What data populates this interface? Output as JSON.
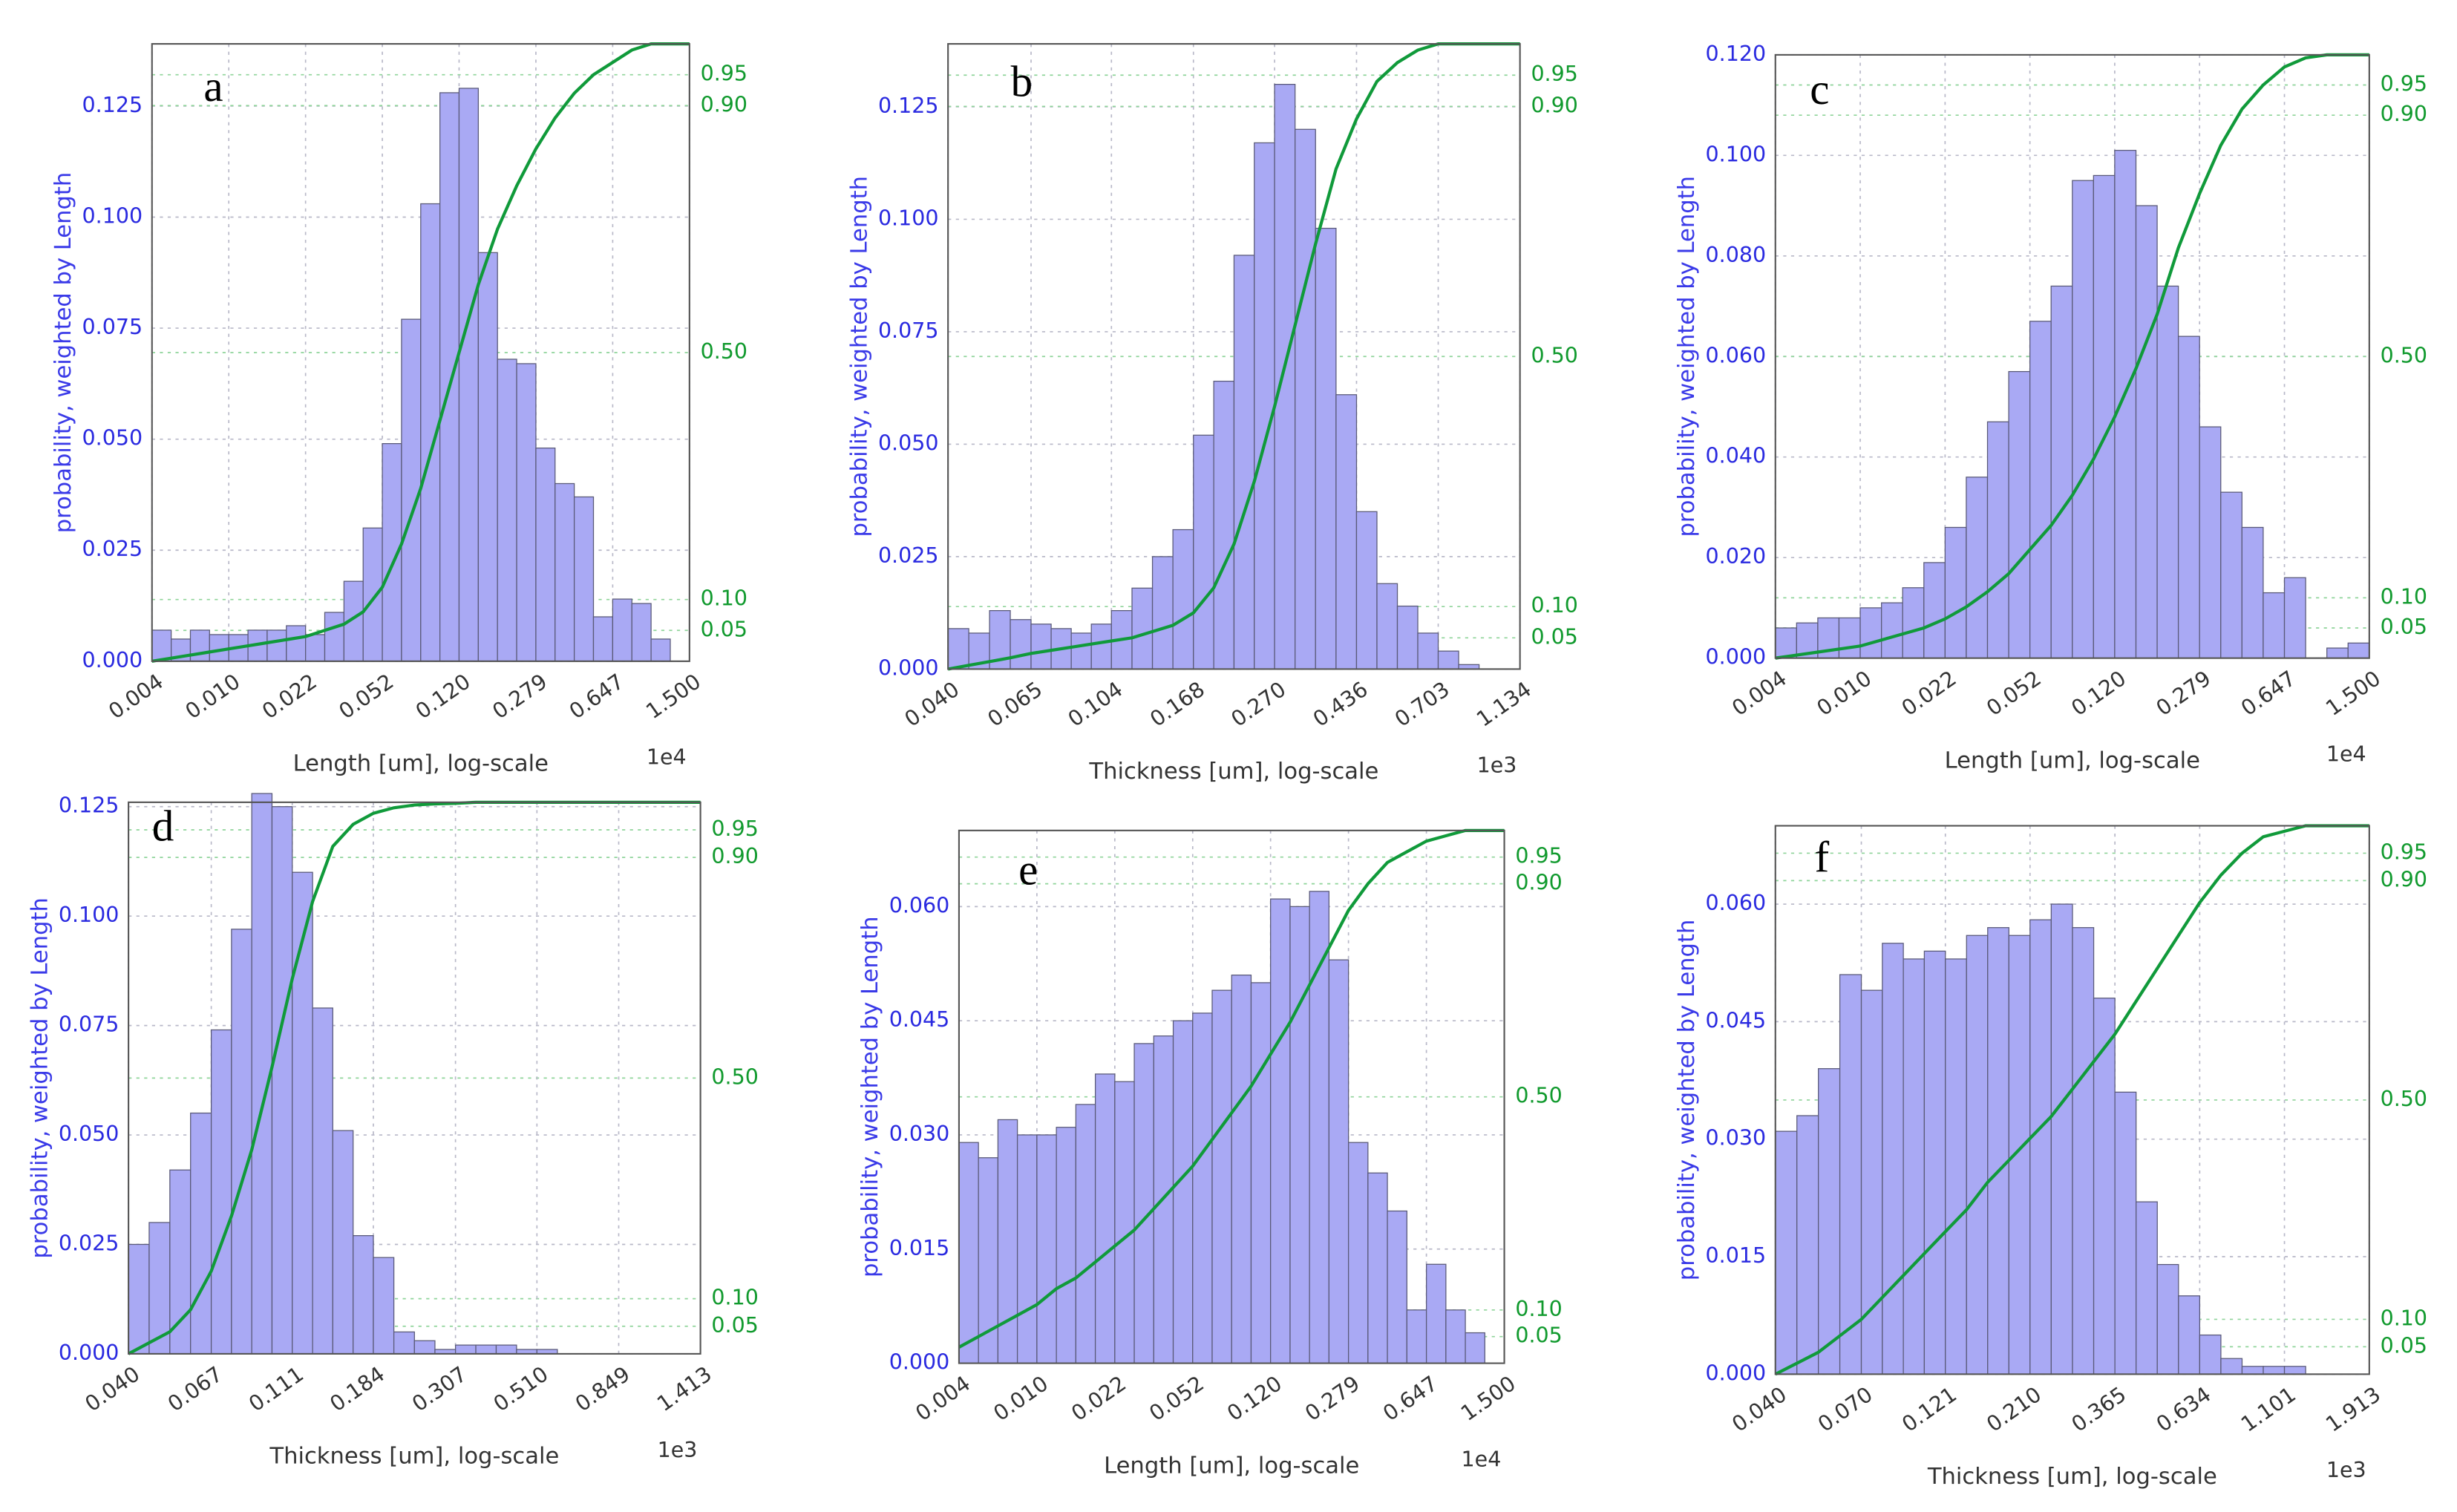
{
  "chart_data": [
    {
      "type": "histogram",
      "panel_label": "a",
      "ylabel": "probability, weighted by Length",
      "xlabel": "Length [um], log-scale",
      "x_multiplier": "1e4",
      "xscale": "log",
      "grid": true,
      "color": "#a9a9f4",
      "bins": [
        0.004157,
        0.00513,
        0.00633,
        0.00781,
        0.00964,
        0.0119,
        0.01468,
        0.01812,
        0.02236,
        0.02759,
        0.03405,
        0.04202,
        0.05185,
        0.06398,
        0.07896,
        0.09743,
        0.1202,
        0.1484,
        0.1831,
        0.2259,
        0.2788,
        0.344,
        0.4245,
        0.5239,
        0.6468,
        0.7982,
        0.985,
        1.2155,
        1.5
      ],
      "values": [
        0.007,
        0.005,
        0.007,
        0.006,
        0.006,
        0.007,
        0.007,
        0.008,
        0.006,
        0.011,
        0.018,
        0.03,
        0.049,
        0.077,
        0.103,
        0.128,
        0.129,
        0.092,
        0.068,
        0.067,
        0.048,
        0.04,
        0.037,
        0.01,
        0.014,
        0.013,
        0.005,
        0
      ],
      "cumulative": {
        "color": "#109a3a",
        "axis": "y2",
        "values": [
          0,
          0.005,
          0.01,
          0.015,
          0.02,
          0.025,
          0.03,
          0.035,
          0.04,
          0.05,
          0.06,
          0.08,
          0.12,
          0.19,
          0.28,
          0.39,
          0.5,
          0.61,
          0.7,
          0.77,
          0.83,
          0.88,
          0.92,
          0.95,
          0.97,
          0.99,
          1,
          1,
          1
        ]
      },
      "xlim": [
        0.004157,
        1.5
      ],
      "ylim": [
        0,
        0.139
      ],
      "y2lim": [
        0,
        1
      ],
      "xticks": [
        {
          "value": 0.004157,
          "label": "0.004"
        },
        {
          "value": 0.00964,
          "label": "0.010"
        },
        {
          "value": 0.02236,
          "label": "0.022"
        },
        {
          "value": 0.05185,
          "label": "0.052"
        },
        {
          "value": 0.1202,
          "label": "0.120"
        },
        {
          "value": 0.2788,
          "label": "0.279"
        },
        {
          "value": 0.6468,
          "label": "0.647"
        },
        {
          "value": 1.5,
          "label": "1.500"
        }
      ],
      "yticks": [
        {
          "value": 0,
          "label": "0.000"
        },
        0.025,
        {
          "value": 0.05,
          "label": "0.050"
        },
        0.075,
        {
          "value": 0.1,
          "label": "0.100"
        },
        0.125
      ],
      "y2ticks": [
        0.05,
        {
          "value": 0.1,
          "label": "0.10"
        },
        {
          "value": 0.5,
          "label": "0.50"
        },
        {
          "value": 0.9,
          "label": "0.90"
        },
        0.95
      ]
    },
    {
      "type": "histogram",
      "panel_label": "b",
      "ylabel": "probability, weighted by Length",
      "xlabel": "Thickness [um], log-scale",
      "x_multiplier": "1e3",
      "xscale": "log",
      "grid": true,
      "color": "#a9a9f4",
      "bins": [
        0.04,
        0.04516,
        0.05099,
        0.05757,
        0.065,
        0.07311,
        0.08222,
        0.09247,
        0.104,
        0.1173,
        0.1322,
        0.149,
        0.168,
        0.1892,
        0.213,
        0.2398,
        0.27,
        0.3044,
        0.3431,
        0.3868,
        0.436,
        0.4913,
        0.5537,
        0.6239,
        0.703,
        0.7923,
        0.8929,
        1.0063,
        1.134
      ],
      "values": [
        0.009,
        0.008,
        0.013,
        0.011,
        0.01,
        0.009,
        0.008,
        0.01,
        0.013,
        0.018,
        0.025,
        0.031,
        0.052,
        0.064,
        0.092,
        0.117,
        0.13,
        0.12,
        0.098,
        0.061,
        0.035,
        0.019,
        0.014,
        0.008,
        0.004,
        0.001,
        0,
        0
      ],
      "cumulative": {
        "color": "#109a3a",
        "axis": "y2",
        "values": [
          0,
          0.006,
          0.012,
          0.018,
          0.025,
          0.03,
          0.035,
          0.04,
          0.045,
          0.05,
          0.06,
          0.07,
          0.09,
          0.13,
          0.2,
          0.3,
          0.42,
          0.55,
          0.68,
          0.8,
          0.88,
          0.94,
          0.97,
          0.99,
          1,
          1,
          1,
          1,
          1
        ]
      },
      "xlim": [
        0.04,
        1.134
      ],
      "ylim": [
        0,
        0.139
      ],
      "y2lim": [
        0,
        1
      ],
      "xticks": [
        {
          "value": 0.04,
          "label": "0.040"
        },
        0.065,
        0.104,
        0.168,
        {
          "value": 0.27,
          "label": "0.270"
        },
        0.436,
        0.703,
        1.134
      ],
      "yticks": [
        {
          "value": 0,
          "label": "0.000"
        },
        0.025,
        {
          "value": 0.05,
          "label": "0.050"
        },
        0.075,
        {
          "value": 0.1,
          "label": "0.100"
        },
        0.125
      ],
      "y2ticks": [
        0.05,
        {
          "value": 0.1,
          "label": "0.10"
        },
        {
          "value": 0.5,
          "label": "0.50"
        },
        {
          "value": 0.9,
          "label": "0.90"
        },
        0.95
      ]
    },
    {
      "type": "histogram",
      "panel_label": "c",
      "ylabel": "probability, weighted by Length",
      "xlabel": "Length [um], log-scale",
      "x_multiplier": "1e4",
      "xscale": "log",
      "grid": true,
      "color": "#a9a9f4",
      "bins": [
        0.004157,
        0.00513,
        0.00633,
        0.00781,
        0.00964,
        0.0119,
        0.01468,
        0.01812,
        0.02236,
        0.02759,
        0.03405,
        0.04202,
        0.05185,
        0.06398,
        0.07896,
        0.09743,
        0.1202,
        0.1484,
        0.1831,
        0.2259,
        0.2788,
        0.344,
        0.4245,
        0.5239,
        0.6468,
        0.7982,
        0.985,
        1.2155,
        1.5
      ],
      "values": [
        0.006,
        0.007,
        0.008,
        0.008,
        0.01,
        0.011,
        0.014,
        0.019,
        0.026,
        0.036,
        0.047,
        0.057,
        0.067,
        0.074,
        0.095,
        0.096,
        0.101,
        0.09,
        0.074,
        0.064,
        0.046,
        0.033,
        0.026,
        0.013,
        0.016,
        0,
        0.002,
        0.003
      ],
      "cumulative": {
        "color": "#109a3a",
        "axis": "y2",
        "values": [
          0,
          0.005,
          0.01,
          0.015,
          0.02,
          0.03,
          0.04,
          0.05,
          0.065,
          0.085,
          0.11,
          0.14,
          0.18,
          0.22,
          0.27,
          0.33,
          0.4,
          0.48,
          0.57,
          0.68,
          0.77,
          0.85,
          0.91,
          0.95,
          0.98,
          0.995,
          1,
          1,
          1
        ]
      },
      "xlim": [
        0.004157,
        1.5
      ],
      "ylim": [
        0,
        0.12
      ],
      "y2lim": [
        0,
        1
      ],
      "xticks": [
        {
          "value": 0.004157,
          "label": "0.004"
        },
        {
          "value": 0.00964,
          "label": "0.010"
        },
        {
          "value": 0.02236,
          "label": "0.022"
        },
        {
          "value": 0.05185,
          "label": "0.052"
        },
        {
          "value": 0.1202,
          "label": "0.120"
        },
        {
          "value": 0.2788,
          "label": "0.279"
        },
        {
          "value": 0.6468,
          "label": "0.647"
        },
        {
          "value": 1.5,
          "label": "1.500"
        }
      ],
      "yticks": [
        {
          "value": 0,
          "label": "0.000"
        },
        {
          "value": 0.02,
          "label": "0.020"
        },
        {
          "value": 0.04,
          "label": "0.040"
        },
        {
          "value": 0.06,
          "label": "0.060"
        },
        {
          "value": 0.08,
          "label": "0.080"
        },
        {
          "value": 0.1,
          "label": "0.100"
        },
        {
          "value": 0.12,
          "label": "0.120"
        }
      ],
      "y2ticks": [
        0.05,
        {
          "value": 0.1,
          "label": "0.10"
        },
        {
          "value": 0.5,
          "label": "0.50"
        },
        {
          "value": 0.9,
          "label": "0.90"
        },
        0.95
      ]
    },
    {
      "type": "histogram",
      "panel_label": "d",
      "ylabel": "probability, weighted by Length",
      "xlabel": "Thickness [um], log-scale",
      "x_multiplier": "1e3",
      "xscale": "log",
      "grid": true,
      "color": "#a9a9f4",
      "bins": [
        0.04,
        0.0455,
        0.05176,
        0.05889,
        0.067,
        0.07601,
        0.08624,
        0.09784,
        0.111,
        0.126,
        0.1429,
        0.1622,
        0.184,
        0.2091,
        0.2377,
        0.2701,
        0.307,
        0.3485,
        0.3957,
        0.4492,
        0.51,
        0.5793,
        0.658,
        0.7475,
        0.849,
        0.9643,
        1.0952,
        1.244,
        1.413
      ],
      "values": [
        0.025,
        0.03,
        0.042,
        0.055,
        0.074,
        0.097,
        0.128,
        0.125,
        0.11,
        0.079,
        0.051,
        0.027,
        0.022,
        0.005,
        0.003,
        0.001,
        0.002,
        0.002,
        0.002,
        0.001,
        0.001,
        0,
        0,
        0,
        0,
        0,
        0,
        0
      ],
      "cumulative": {
        "color": "#109a3a",
        "axis": "y2",
        "values": [
          0,
          0.02,
          0.04,
          0.08,
          0.15,
          0.25,
          0.37,
          0.52,
          0.68,
          0.82,
          0.92,
          0.96,
          0.98,
          0.99,
          0.995,
          0.997,
          0.998,
          1,
          1,
          1,
          1,
          1,
          1,
          1,
          1,
          1,
          1,
          1,
          1
        ]
      },
      "xlim": [
        0.04,
        1.413
      ],
      "ylim": [
        0,
        0.126
      ],
      "y2lim": [
        0,
        1
      ],
      "xticks": [
        {
          "value": 0.04,
          "label": "0.040"
        },
        0.067,
        0.111,
        0.184,
        0.307,
        {
          "value": 0.51,
          "label": "0.510"
        },
        0.849,
        1.413
      ],
      "yticks": [
        {
          "value": 0,
          "label": "0.000"
        },
        0.025,
        {
          "value": 0.05,
          "label": "0.050"
        },
        0.075,
        {
          "value": 0.1,
          "label": "0.100"
        },
        0.125
      ],
      "y2ticks": [
        0.05,
        {
          "value": 0.1,
          "label": "0.10"
        },
        {
          "value": 0.5,
          "label": "0.50"
        },
        {
          "value": 0.9,
          "label": "0.90"
        },
        0.95
      ]
    },
    {
      "type": "histogram",
      "panel_label": "e",
      "ylabel": "probability, weighted by Length",
      "xlabel": "Length [um], log-scale",
      "x_multiplier": "1e4",
      "xscale": "log",
      "grid": true,
      "color": "#a9a9f4",
      "bins": [
        0.004157,
        0.00513,
        0.00633,
        0.00781,
        0.00964,
        0.0119,
        0.01468,
        0.01812,
        0.02236,
        0.02759,
        0.03405,
        0.04202,
        0.05185,
        0.06398,
        0.07896,
        0.09743,
        0.1202,
        0.1484,
        0.1831,
        0.2259,
        0.2788,
        0.344,
        0.4245,
        0.5239,
        0.6468,
        0.7982,
        0.985,
        1.2155,
        1.5
      ],
      "values": [
        0.029,
        0.027,
        0.032,
        0.03,
        0.03,
        0.031,
        0.034,
        0.038,
        0.037,
        0.042,
        0.043,
        0.045,
        0.046,
        0.049,
        0.051,
        0.05,
        0.061,
        0.06,
        0.062,
        0.053,
        0.029,
        0.025,
        0.02,
        0.007,
        0.013,
        0.007,
        0.004,
        0
      ],
      "cumulative": {
        "color": "#109a3a",
        "axis": "y2",
        "values": [
          0.03,
          0.05,
          0.07,
          0.09,
          0.11,
          0.14,
          0.16,
          0.19,
          0.22,
          0.25,
          0.29,
          0.33,
          0.37,
          0.42,
          0.47,
          0.52,
          0.58,
          0.64,
          0.71,
          0.78,
          0.85,
          0.9,
          0.94,
          0.96,
          0.98,
          0.99,
          1,
          1,
          1
        ]
      },
      "xlim": [
        0.004157,
        1.5
      ],
      "ylim": [
        0,
        0.07
      ],
      "y2lim": [
        0,
        1
      ],
      "xticks": [
        {
          "value": 0.004157,
          "label": "0.004"
        },
        {
          "value": 0.00964,
          "label": "0.010"
        },
        {
          "value": 0.02236,
          "label": "0.022"
        },
        {
          "value": 0.05185,
          "label": "0.052"
        },
        {
          "value": 0.1202,
          "label": "0.120"
        },
        {
          "value": 0.2788,
          "label": "0.279"
        },
        {
          "value": 0.6468,
          "label": "0.647"
        },
        {
          "value": 1.5,
          "label": "1.500"
        }
      ],
      "yticks": [
        {
          "value": 0,
          "label": "0.000"
        },
        0.015,
        {
          "value": 0.03,
          "label": "0.030"
        },
        0.045,
        {
          "value": 0.06,
          "label": "0.060"
        }
      ],
      "y2ticks": [
        0.05,
        {
          "value": 0.1,
          "label": "0.10"
        },
        {
          "value": 0.5,
          "label": "0.50"
        },
        {
          "value": 0.9,
          "label": "0.90"
        },
        0.95
      ]
    },
    {
      "type": "histogram",
      "panel_label": "f",
      "ylabel": "probability, weighted by Length",
      "xlabel": "Thickness [um], log-scale",
      "x_multiplier": "1e3",
      "xscale": "log",
      "grid": true,
      "color": "#a9a9f4",
      "bins": [
        0.04,
        0.04601,
        0.05292,
        0.06086,
        0.07,
        0.08026,
        0.09203,
        0.1055,
        0.121,
        0.1389,
        0.1594,
        0.183,
        0.21,
        0.2411,
        0.2769,
        0.3179,
        0.365,
        0.419,
        0.481,
        0.5522,
        0.634,
        0.7278,
        0.8355,
        0.9592,
        1.101,
        1.2641,
        1.4513,
        1.6663,
        1.913
      ],
      "values": [
        0.031,
        0.033,
        0.039,
        0.051,
        0.049,
        0.055,
        0.053,
        0.054,
        0.053,
        0.056,
        0.057,
        0.056,
        0.058,
        0.06,
        0.057,
        0.048,
        0.036,
        0.022,
        0.014,
        0.01,
        0.005,
        0.002,
        0.001,
        0.001,
        0.001,
        0,
        0,
        0
      ],
      "cumulative": {
        "color": "#109a3a",
        "axis": "y2",
        "values": [
          0,
          0.02,
          0.04,
          0.07,
          0.1,
          0.14,
          0.18,
          0.22,
          0.26,
          0.3,
          0.35,
          0.39,
          0.43,
          0.47,
          0.52,
          0.57,
          0.62,
          0.68,
          0.74,
          0.8,
          0.86,
          0.91,
          0.95,
          0.98,
          0.99,
          1,
          1,
          1,
          1
        ]
      },
      "xlim": [
        0.04,
        1.913
      ],
      "ylim": [
        0,
        0.07
      ],
      "y2lim": [
        0,
        1
      ],
      "xticks": [
        {
          "value": 0.04,
          "label": "0.040"
        },
        {
          "value": 0.07,
          "label": "0.070"
        },
        0.121,
        {
          "value": 0.21,
          "label": "0.210"
        },
        0.365,
        0.634,
        1.101,
        1.913
      ],
      "yticks": [
        {
          "value": 0,
          "label": "0.000"
        },
        0.015,
        {
          "value": 0.03,
          "label": "0.030"
        },
        0.045,
        {
          "value": 0.06,
          "label": "0.060"
        }
      ],
      "y2ticks": [
        0.05,
        {
          "value": 0.1,
          "label": "0.10"
        },
        {
          "value": 0.5,
          "label": "0.50"
        },
        {
          "value": 0.9,
          "label": "0.90"
        },
        0.95
      ]
    }
  ]
}
